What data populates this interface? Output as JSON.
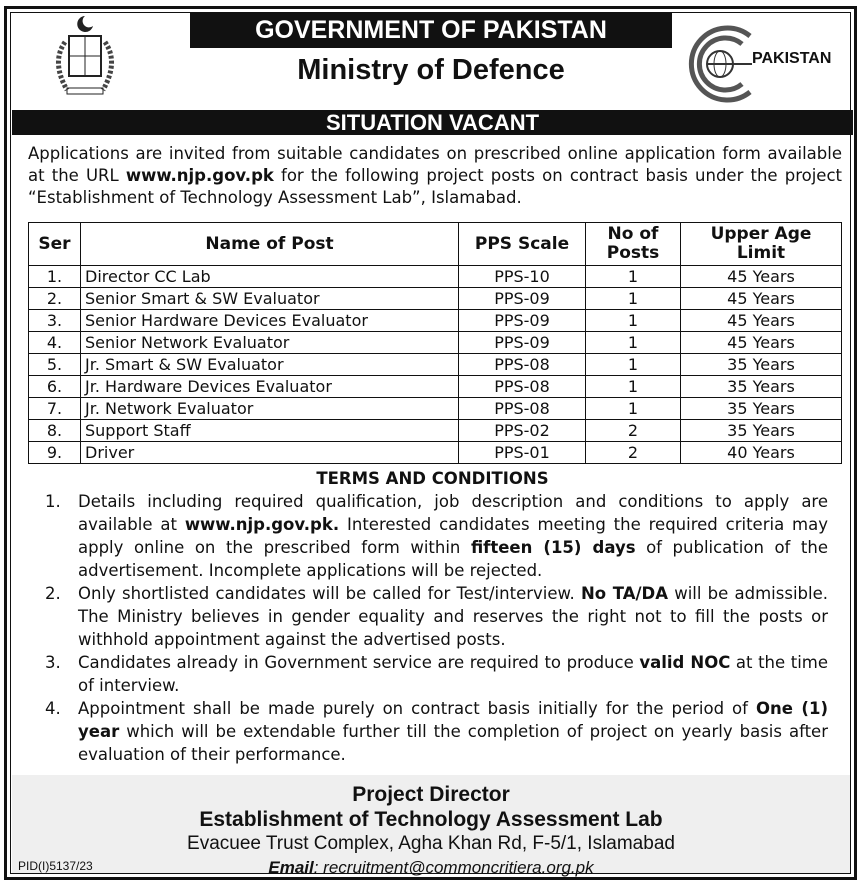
{
  "header": {
    "government": "GOVERNMENT OF PAKISTAN",
    "ministry": "Ministry of Defence",
    "logo_text": "PAKISTAN",
    "banner": "SITUATION VACANT"
  },
  "intro": {
    "before_url": "Applications are invited from suitable candidates on prescribed online application form available at the URL ",
    "url": "www.njp.gov.pk",
    "after_url": " for the following project posts on contract basis under the project “Establishment of Technology Assessment Lab”, Islamabad."
  },
  "table": {
    "headers": [
      "Ser",
      "Name of Post",
      "PPS Scale",
      "No of Posts",
      "Upper Age Limit"
    ],
    "rows": [
      [
        "1.",
        "Director CC Lab",
        "PPS-10",
        "1",
        "45 Years"
      ],
      [
        "2.",
        "Senior Smart & SW Evaluator",
        "PPS-09",
        "1",
        "45 Years"
      ],
      [
        "3.",
        "Senior Hardware Devices Evaluator",
        "PPS-09",
        "1",
        "45 Years"
      ],
      [
        "4.",
        "Senior Network Evaluator",
        "PPS-09",
        "1",
        "45 Years"
      ],
      [
        "5.",
        "Jr. Smart & SW Evaluator",
        "PPS-08",
        "1",
        "35 Years"
      ],
      [
        "6.",
        "Jr. Hardware Devices Evaluator",
        "PPS-08",
        "1",
        "35 Years"
      ],
      [
        "7.",
        "Jr. Network Evaluator",
        "PPS-08",
        "1",
        "35 Years"
      ],
      [
        "8.",
        "Support Staff",
        "PPS-02",
        "2",
        "35 Years"
      ],
      [
        "9.",
        "Driver",
        "PPS-01",
        "2",
        "40 Years"
      ]
    ]
  },
  "terms": {
    "heading": "TERMS AND CONDITIONS",
    "items": [
      {
        "n": "1.",
        "html": "Details including required qualification, job description and conditions to apply are available at <b>www.njp.gov.pk.</b> Interested candidates meeting the required criteria may apply online on the prescribed form within <b>fifteen (15) days</b> of publication of the advertisement. Incomplete applications will be rejected."
      },
      {
        "n": "2.",
        "html": "Only shortlisted candidates will be called for Test/interview. <b>No TA/DA</b> will be admissible. The Ministry believes in gender equality and reserves the right not to fill the posts or withhold appointment against the advertised posts."
      },
      {
        "n": "3.",
        "html": "Candidates already in Government service are required to produce <b>valid NOC</b> at the time of interview."
      },
      {
        "n": "4.",
        "html": "Appointment shall be made purely on contract basis initially for the period of <b>One (1) year</b> which will be extendable further till the completion of project on yearly basis after evaluation of their performance."
      }
    ]
  },
  "footer": {
    "title": "Project Director",
    "project": "Establishment of Technology Assessment Lab",
    "address": "Evacuee Trust Complex, Agha Khan Rd, F-5/1, Islamabad",
    "email_label": "Email",
    "email": ": recruitment@commoncritiera.org.pk",
    "pid": "PID(I)5137/23"
  }
}
